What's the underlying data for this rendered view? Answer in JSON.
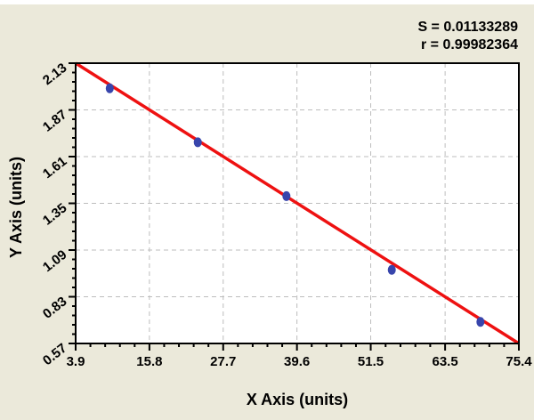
{
  "chart_data": {
    "type": "scatter",
    "title": "",
    "xlabel": "X Axis (units)",
    "ylabel": "Y Axis (units)",
    "xlim": [
      3.9,
      75.4
    ],
    "ylim": [
      0.57,
      2.13
    ],
    "grid": true,
    "legend": "none",
    "x_ticks": [
      {
        "value": 3.9,
        "label": "3.9"
      },
      {
        "value": 15.8,
        "label": "15.8"
      },
      {
        "value": 27.7,
        "label": "27.7"
      },
      {
        "value": 39.6,
        "label": "39.6"
      },
      {
        "value": 51.5,
        "label": "51.5"
      },
      {
        "value": 63.5,
        "label": "63.5"
      },
      {
        "value": 75.4,
        "label": "75.4"
      }
    ],
    "y_ticks": [
      {
        "value": 2.13,
        "label": "2.13"
      },
      {
        "value": 1.87,
        "label": "1.87"
      },
      {
        "value": 1.61,
        "label": "1.61"
      },
      {
        "value": 1.35,
        "label": "1.35"
      },
      {
        "value": 1.09,
        "label": "1.09"
      },
      {
        "value": 0.83,
        "label": "0.83"
      },
      {
        "value": 0.57,
        "label": "0.57"
      }
    ],
    "minor_ticks_per_interval": 4,
    "points": [
      {
        "x": 9.4,
        "y": 1.99
      },
      {
        "x": 23.6,
        "y": 1.69
      },
      {
        "x": 37.9,
        "y": 1.39
      },
      {
        "x": 54.9,
        "y": 0.98
      },
      {
        "x": 69.2,
        "y": 0.69
      }
    ],
    "fit_line": {
      "x1": 3.9,
      "y1": 2.13,
      "x2": 75.4,
      "y2": 0.57
    },
    "annotations": {
      "s_label": "S = 0.01133289",
      "r_label": "r = 0.99982364"
    },
    "colors": {
      "background": "#EBE9DA",
      "plot_background": "#FFFFFF",
      "fit_line": "#EE1111",
      "point": "#3845AC",
      "grid": "#BDBDBD",
      "axis": "#000000",
      "text": "#000000"
    }
  }
}
